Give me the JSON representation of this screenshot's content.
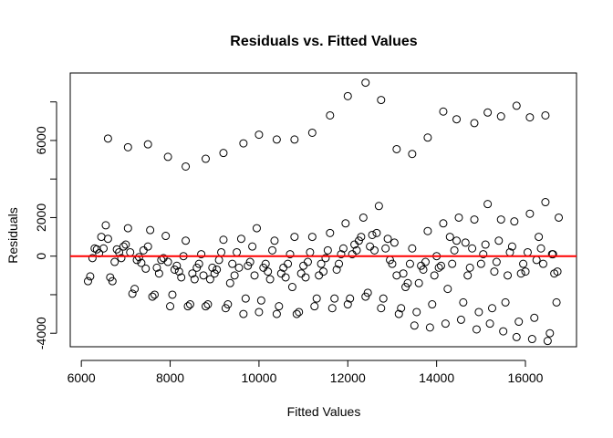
{
  "chart_data": {
    "type": "scatter",
    "title": "Residuals vs. Fitted Values",
    "xlabel": "Fitted Values",
    "ylabel": "Residuals",
    "xlim": [
      5750,
      17150
    ],
    "ylim": [
      -4700,
      9500
    ],
    "x_ticks": [
      6000,
      8000,
      10000,
      12000,
      14000,
      16000
    ],
    "x_tick_labels": [
      "6000",
      "8000",
      "10000",
      "12000",
      "14000",
      "16000"
    ],
    "y_ticks": [
      -4000,
      0,
      2000,
      6000
    ],
    "y_tick_labels": [
      "-4000",
      "0",
      "2000",
      "6000"
    ],
    "y_minor_ticks": [
      -2000,
      4000,
      8000
    ],
    "reference_line": {
      "y": 0,
      "color": "#ff0000"
    },
    "grid": false,
    "points": [
      {
        "x": 6600,
        "y": 6100
      },
      {
        "x": 7050,
        "y": 5650
      },
      {
        "x": 7500,
        "y": 5800
      },
      {
        "x": 7950,
        "y": 5150
      },
      {
        "x": 8350,
        "y": 4650
      },
      {
        "x": 8800,
        "y": 5050
      },
      {
        "x": 9200,
        "y": 5350
      },
      {
        "x": 9650,
        "y": 5850
      },
      {
        "x": 10000,
        "y": 6300
      },
      {
        "x": 10400,
        "y": 6050
      },
      {
        "x": 10800,
        "y": 6050
      },
      {
        "x": 11200,
        "y": 6400
      },
      {
        "x": 11600,
        "y": 7300
      },
      {
        "x": 12000,
        "y": 8300
      },
      {
        "x": 12400,
        "y": 9000
      },
      {
        "x": 12750,
        "y": 8100
      },
      {
        "x": 13100,
        "y": 5550
      },
      {
        "x": 13450,
        "y": 5300
      },
      {
        "x": 13800,
        "y": 6150
      },
      {
        "x": 14150,
        "y": 7500
      },
      {
        "x": 14450,
        "y": 7100
      },
      {
        "x": 14850,
        "y": 6900
      },
      {
        "x": 15150,
        "y": 7450
      },
      {
        "x": 15450,
        "y": 7250
      },
      {
        "x": 15800,
        "y": 7800
      },
      {
        "x": 16100,
        "y": 7200
      },
      {
        "x": 16450,
        "y": 7300
      },
      {
        "x": 6150,
        "y": -1300
      },
      {
        "x": 6200,
        "y": -1050
      },
      {
        "x": 6250,
        "y": -100
      },
      {
        "x": 6300,
        "y": 400
      },
      {
        "x": 6350,
        "y": 350
      },
      {
        "x": 6400,
        "y": 150
      },
      {
        "x": 6450,
        "y": 1000
      },
      {
        "x": 6500,
        "y": 400
      },
      {
        "x": 6550,
        "y": 1600
      },
      {
        "x": 6600,
        "y": 900
      },
      {
        "x": 6650,
        "y": -1100
      },
      {
        "x": 6700,
        "y": -1300
      },
      {
        "x": 6750,
        "y": -300
      },
      {
        "x": 6800,
        "y": 350
      },
      {
        "x": 6850,
        "y": 200
      },
      {
        "x": 6900,
        "y": -100
      },
      {
        "x": 6950,
        "y": 500
      },
      {
        "x": 7000,
        "y": 600
      },
      {
        "x": 7050,
        "y": 1450
      },
      {
        "x": 7100,
        "y": 200
      },
      {
        "x": 7150,
        "y": -1950
      },
      {
        "x": 7200,
        "y": -1700
      },
      {
        "x": 7250,
        "y": -200
      },
      {
        "x": 7300,
        "y": -50
      },
      {
        "x": 7350,
        "y": -350
      },
      {
        "x": 7400,
        "y": 300
      },
      {
        "x": 7450,
        "y": -650
      },
      {
        "x": 7500,
        "y": 500
      },
      {
        "x": 7550,
        "y": 1350
      },
      {
        "x": 7600,
        "y": -2100
      },
      {
        "x": 7650,
        "y": -2000
      },
      {
        "x": 7700,
        "y": -600
      },
      {
        "x": 7750,
        "y": -900
      },
      {
        "x": 7800,
        "y": -200
      },
      {
        "x": 7850,
        "y": -100
      },
      {
        "x": 7900,
        "y": 1050
      },
      {
        "x": 7950,
        "y": -300
      },
      {
        "x": 8000,
        "y": -2600
      },
      {
        "x": 8050,
        "y": -2000
      },
      {
        "x": 8100,
        "y": -700
      },
      {
        "x": 8150,
        "y": -500
      },
      {
        "x": 8200,
        "y": -800
      },
      {
        "x": 8250,
        "y": -1100
      },
      {
        "x": 8300,
        "y": 0
      },
      {
        "x": 8350,
        "y": 800
      },
      {
        "x": 8400,
        "y": -2600
      },
      {
        "x": 8450,
        "y": -2500
      },
      {
        "x": 8500,
        "y": -900
      },
      {
        "x": 8550,
        "y": -1200
      },
      {
        "x": 8600,
        "y": -600
      },
      {
        "x": 8650,
        "y": -400
      },
      {
        "x": 8700,
        "y": 100
      },
      {
        "x": 8750,
        "y": -1000
      },
      {
        "x": 8800,
        "y": -2600
      },
      {
        "x": 8850,
        "y": -2500
      },
      {
        "x": 8900,
        "y": -1200
      },
      {
        "x": 8950,
        "y": -600
      },
      {
        "x": 9000,
        "y": -900
      },
      {
        "x": 9050,
        "y": -700
      },
      {
        "x": 9100,
        "y": -200
      },
      {
        "x": 9150,
        "y": 200
      },
      {
        "x": 9200,
        "y": 850
      },
      {
        "x": 9250,
        "y": -2700
      },
      {
        "x": 9300,
        "y": -2500
      },
      {
        "x": 9350,
        "y": -1400
      },
      {
        "x": 9400,
        "y": -400
      },
      {
        "x": 9450,
        "y": -1000
      },
      {
        "x": 9500,
        "y": 200
      },
      {
        "x": 9550,
        "y": -600
      },
      {
        "x": 9600,
        "y": 900
      },
      {
        "x": 9650,
        "y": -3000
      },
      {
        "x": 9700,
        "y": -2200
      },
      {
        "x": 9750,
        "y": -500
      },
      {
        "x": 9800,
        "y": -300
      },
      {
        "x": 9850,
        "y": 500
      },
      {
        "x": 9900,
        "y": -1000
      },
      {
        "x": 9950,
        "y": 1450
      },
      {
        "x": 10000,
        "y": -2900
      },
      {
        "x": 10050,
        "y": -2300
      },
      {
        "x": 10100,
        "y": -600
      },
      {
        "x": 10150,
        "y": -400
      },
      {
        "x": 10200,
        "y": -800
      },
      {
        "x": 10250,
        "y": -1200
      },
      {
        "x": 10300,
        "y": 300
      },
      {
        "x": 10350,
        "y": 800
      },
      {
        "x": 10400,
        "y": -3000
      },
      {
        "x": 10450,
        "y": -2600
      },
      {
        "x": 10500,
        "y": -900
      },
      {
        "x": 10550,
        "y": -600
      },
      {
        "x": 10600,
        "y": -1100
      },
      {
        "x": 10650,
        "y": -400
      },
      {
        "x": 10700,
        "y": 100
      },
      {
        "x": 10750,
        "y": -1600
      },
      {
        "x": 10800,
        "y": 1000
      },
      {
        "x": 10850,
        "y": -3000
      },
      {
        "x": 10900,
        "y": -2900
      },
      {
        "x": 10950,
        "y": -900
      },
      {
        "x": 11000,
        "y": -500
      },
      {
        "x": 11050,
        "y": -1100
      },
      {
        "x": 11100,
        "y": -300
      },
      {
        "x": 11150,
        "y": 200
      },
      {
        "x": 11200,
        "y": 1000
      },
      {
        "x": 11250,
        "y": -2600
      },
      {
        "x": 11300,
        "y": -2200
      },
      {
        "x": 11350,
        "y": -1000
      },
      {
        "x": 11400,
        "y": -400
      },
      {
        "x": 11450,
        "y": -800
      },
      {
        "x": 11500,
        "y": -100
      },
      {
        "x": 11550,
        "y": 300
      },
      {
        "x": 11600,
        "y": 1200
      },
      {
        "x": 11650,
        "y": -2700
      },
      {
        "x": 11700,
        "y": -2200
      },
      {
        "x": 11750,
        "y": -700
      },
      {
        "x": 11800,
        "y": -400
      },
      {
        "x": 11850,
        "y": 100
      },
      {
        "x": 11900,
        "y": 400
      },
      {
        "x": 11950,
        "y": 1700
      },
      {
        "x": 12000,
        "y": -2500
      },
      {
        "x": 12050,
        "y": -2200
      },
      {
        "x": 12100,
        "y": 100
      },
      {
        "x": 12150,
        "y": 600
      },
      {
        "x": 12200,
        "y": 300
      },
      {
        "x": 12250,
        "y": 800
      },
      {
        "x": 12300,
        "y": 1000
      },
      {
        "x": 12350,
        "y": 2000
      },
      {
        "x": 12400,
        "y": -2100
      },
      {
        "x": 12450,
        "y": -1900
      },
      {
        "x": 12500,
        "y": 500
      },
      {
        "x": 12550,
        "y": 1100
      },
      {
        "x": 12600,
        "y": 300
      },
      {
        "x": 12650,
        "y": 1200
      },
      {
        "x": 12700,
        "y": 2600
      },
      {
        "x": 12750,
        "y": -2700
      },
      {
        "x": 12800,
        "y": -2200
      },
      {
        "x": 12850,
        "y": 400
      },
      {
        "x": 12900,
        "y": 900
      },
      {
        "x": 12950,
        "y": -200
      },
      {
        "x": 13000,
        "y": -400
      },
      {
        "x": 13050,
        "y": 700
      },
      {
        "x": 13100,
        "y": -1000
      },
      {
        "x": 13150,
        "y": -3000
      },
      {
        "x": 13200,
        "y": -2700
      },
      {
        "x": 13250,
        "y": -900
      },
      {
        "x": 13300,
        "y": -1600
      },
      {
        "x": 13350,
        "y": -1400
      },
      {
        "x": 13400,
        "y": -400
      },
      {
        "x": 13450,
        "y": 400
      },
      {
        "x": 13500,
        "y": -3600
      },
      {
        "x": 13550,
        "y": -2900
      },
      {
        "x": 13600,
        "y": -1400
      },
      {
        "x": 13650,
        "y": -500
      },
      {
        "x": 13700,
        "y": -700
      },
      {
        "x": 13750,
        "y": -300
      },
      {
        "x": 13800,
        "y": 1300
      },
      {
        "x": 13850,
        "y": -3700
      },
      {
        "x": 13900,
        "y": -2500
      },
      {
        "x": 13950,
        "y": -1000
      },
      {
        "x": 14000,
        "y": 0
      },
      {
        "x": 14050,
        "y": -600
      },
      {
        "x": 14100,
        "y": -500
      },
      {
        "x": 14150,
        "y": 1700
      },
      {
        "x": 14200,
        "y": -3500
      },
      {
        "x": 14250,
        "y": -1700
      },
      {
        "x": 14300,
        "y": 1000
      },
      {
        "x": 14350,
        "y": -400
      },
      {
        "x": 14400,
        "y": 300
      },
      {
        "x": 14450,
        "y": 800
      },
      {
        "x": 14500,
        "y": 2000
      },
      {
        "x": 14550,
        "y": -3300
      },
      {
        "x": 14600,
        "y": -2400
      },
      {
        "x": 14650,
        "y": 700
      },
      {
        "x": 14700,
        "y": -1000
      },
      {
        "x": 14750,
        "y": -600
      },
      {
        "x": 14800,
        "y": 400
      },
      {
        "x": 14850,
        "y": 1900
      },
      {
        "x": 14900,
        "y": -3800
      },
      {
        "x": 14950,
        "y": -2900
      },
      {
        "x": 15000,
        "y": -400
      },
      {
        "x": 15050,
        "y": 100
      },
      {
        "x": 15100,
        "y": 600
      },
      {
        "x": 15150,
        "y": 2700
      },
      {
        "x": 15200,
        "y": -3500
      },
      {
        "x": 15250,
        "y": -2700
      },
      {
        "x": 15300,
        "y": -800
      },
      {
        "x": 15350,
        "y": -300
      },
      {
        "x": 15400,
        "y": 800
      },
      {
        "x": 15450,
        "y": 1900
      },
      {
        "x": 15500,
        "y": -3900
      },
      {
        "x": 15550,
        "y": -2400
      },
      {
        "x": 15600,
        "y": -1000
      },
      {
        "x": 15650,
        "y": 200
      },
      {
        "x": 15700,
        "y": 500
      },
      {
        "x": 15750,
        "y": 1800
      },
      {
        "x": 15800,
        "y": -4200
      },
      {
        "x": 15850,
        "y": -3400
      },
      {
        "x": 15900,
        "y": -900
      },
      {
        "x": 15950,
        "y": -400
      },
      {
        "x": 16000,
        "y": -800
      },
      {
        "x": 16050,
        "y": 200
      },
      {
        "x": 16100,
        "y": 2200
      },
      {
        "x": 16150,
        "y": -4300
      },
      {
        "x": 16200,
        "y": -3200
      },
      {
        "x": 16250,
        "y": -200
      },
      {
        "x": 16300,
        "y": 1000
      },
      {
        "x": 16350,
        "y": 400
      },
      {
        "x": 16400,
        "y": -400
      },
      {
        "x": 16450,
        "y": 2800
      },
      {
        "x": 16500,
        "y": -4400
      },
      {
        "x": 16550,
        "y": -4000
      },
      {
        "x": 16600,
        "y": 100
      },
      {
        "x": 16650,
        "y": -900
      },
      {
        "x": 16700,
        "y": -2400
      },
      {
        "x": 16750,
        "y": 2000
      },
      {
        "x": 16720,
        "y": -800
      },
      {
        "x": 16620,
        "y": 100
      }
    ]
  }
}
